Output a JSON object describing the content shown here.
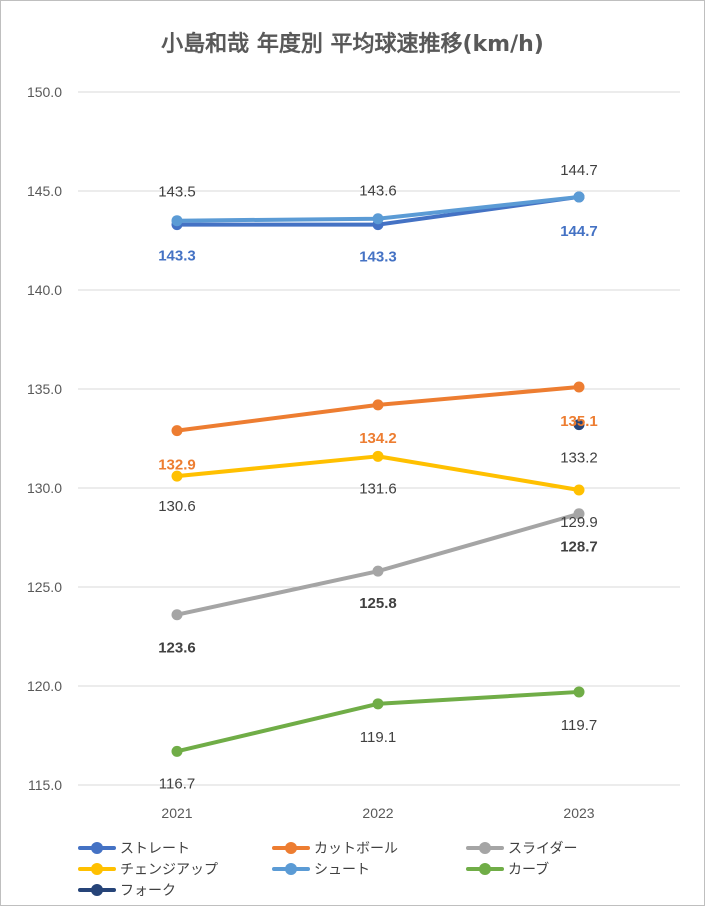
{
  "title": "小島和哉 年度別 平均球速推移(km/h)",
  "chart_data": {
    "type": "line",
    "title": "小島和哉 年度別 平均球速推移(km/h)",
    "categories": [
      "2021",
      "2022",
      "2023"
    ],
    "ylim": [
      115.0,
      150.0
    ],
    "yticks": [
      "115.0",
      "120.0",
      "125.0",
      "130.0",
      "135.0",
      "140.0",
      "145.0",
      "150.0"
    ],
    "grid": true,
    "legend_position": "bottom",
    "series": [
      {
        "name": "ストレート",
        "color": "#4472c4",
        "values": [
          143.3,
          143.3,
          144.7
        ],
        "labels": [
          "143.3",
          "143.3",
          "144.7"
        ]
      },
      {
        "name": "カットボール",
        "color": "#ed7d31",
        "values": [
          132.9,
          134.2,
          135.1
        ],
        "labels": [
          "132.9",
          "134.2",
          "135.1"
        ]
      },
      {
        "name": "スライダー",
        "color": "#a5a5a5",
        "values": [
          123.6,
          125.8,
          128.7
        ],
        "labels": [
          "123.6",
          "125.8",
          "128.7"
        ]
      },
      {
        "name": "チェンジアップ",
        "color": "#ffc000",
        "values": [
          130.6,
          131.6,
          129.9
        ],
        "labels": [
          "130.6",
          "131.6",
          "129.9"
        ]
      },
      {
        "name": "シュート",
        "color": "#5b9bd5",
        "values": [
          143.5,
          143.6,
          144.7
        ],
        "labels": [
          "143.5",
          "143.6",
          "144.7"
        ]
      },
      {
        "name": "カーブ",
        "color": "#70ad47",
        "values": [
          116.7,
          119.1,
          119.7
        ],
        "labels": [
          "116.7",
          "119.1",
          "119.7"
        ]
      },
      {
        "name": "フォーク",
        "color": "#264478",
        "values": [
          null,
          null,
          133.2
        ],
        "labels": [
          null,
          null,
          "133.2"
        ]
      }
    ]
  }
}
